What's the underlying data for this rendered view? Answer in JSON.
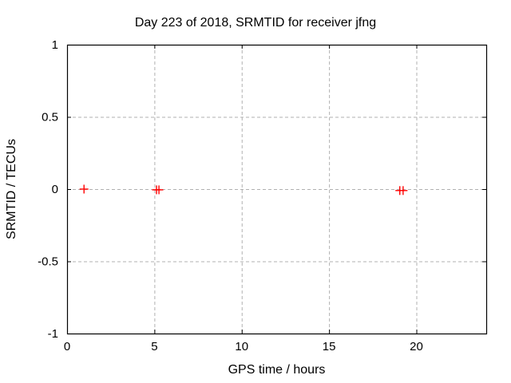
{
  "window": {
    "background": "#ffffff"
  },
  "chart_data": {
    "type": "scatter",
    "title": "Day 223 of 2018, SRMTID for receiver jfng",
    "xlabel": "GPS time / hours",
    "ylabel": "SRMTID / TECUs",
    "xlim": [
      0,
      24
    ],
    "ylim": [
      -1,
      1
    ],
    "xticks": [
      0,
      5,
      10,
      15,
      20
    ],
    "yticks": [
      -1,
      -0.5,
      0,
      0.5,
      1
    ],
    "grid": true,
    "legend_position": "none",
    "colors": {
      "border": "#000000",
      "grid": "#b0b0b0",
      "marker": "#ff0000",
      "text": "#000000"
    },
    "series": [
      {
        "name": "SRMTID",
        "marker": "plus",
        "color": "#ff0000",
        "points": [
          [
            0.97,
            0.0
          ],
          [
            5.12,
            -0.005
          ],
          [
            5.26,
            -0.005
          ],
          [
            19.05,
            -0.01
          ],
          [
            19.24,
            -0.01
          ]
        ]
      }
    ]
  }
}
